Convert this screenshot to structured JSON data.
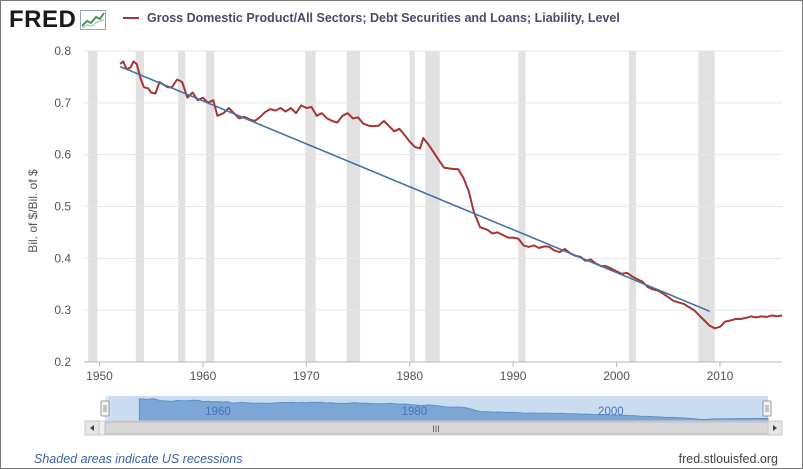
{
  "brand": {
    "name": "FRED"
  },
  "legend": {
    "label": "Gross Domestic Product/All Sectors; Debt Securities and Loans; Liability, Level",
    "color": "#a83533"
  },
  "footer": {
    "note": "Shaded areas indicate US recessions",
    "source": "fred.stlouisfed.org"
  },
  "navigator": {
    "labels": [
      "1960",
      "1980",
      "2000"
    ],
    "grip": "III"
  },
  "chart_data": {
    "type": "line",
    "title": "",
    "xlabel": "",
    "ylabel": "Bil. of $/Bil. of $",
    "xlim": [
      1948.5,
      2016
    ],
    "ylim": [
      0.2,
      0.8
    ],
    "x_ticks": [
      1950,
      1960,
      1970,
      1980,
      1990,
      2000,
      2010
    ],
    "y_ticks": [
      0.2,
      0.3,
      0.4,
      0.5,
      0.6,
      0.7,
      0.8
    ],
    "grid": true,
    "legend_position": "top",
    "recessions": [
      [
        1948.9,
        1949.8
      ],
      [
        1953.5,
        1954.3
      ],
      [
        1957.6,
        1958.3
      ],
      [
        1960.3,
        1961.1
      ],
      [
        1969.9,
        1970.9
      ],
      [
        1973.9,
        1975.2
      ],
      [
        1980.0,
        1980.5
      ],
      [
        1981.5,
        1982.9
      ],
      [
        1990.5,
        1991.2
      ],
      [
        2001.2,
        2001.9
      ],
      [
        2007.9,
        2009.5
      ]
    ],
    "series": [
      {
        "name": "Gross Domestic Product/All Sectors; Debt Securities and Loans; Liability, Level",
        "color": "#a83533",
        "points": [
          [
            1952.0,
            0.775
          ],
          [
            1952.3,
            0.78
          ],
          [
            1952.6,
            0.765
          ],
          [
            1953.0,
            0.768
          ],
          [
            1953.3,
            0.78
          ],
          [
            1953.6,
            0.775
          ],
          [
            1954.0,
            0.745
          ],
          [
            1954.3,
            0.73
          ],
          [
            1954.7,
            0.728
          ],
          [
            1955.0,
            0.72
          ],
          [
            1955.4,
            0.718
          ],
          [
            1955.8,
            0.74
          ],
          [
            1956.2,
            0.735
          ],
          [
            1956.6,
            0.73
          ],
          [
            1957.0,
            0.73
          ],
          [
            1957.5,
            0.745
          ],
          [
            1958.0,
            0.74
          ],
          [
            1958.5,
            0.71
          ],
          [
            1959.0,
            0.72
          ],
          [
            1959.5,
            0.705
          ],
          [
            1960.0,
            0.71
          ],
          [
            1960.5,
            0.7
          ],
          [
            1961.0,
            0.705
          ],
          [
            1961.4,
            0.675
          ],
          [
            1962.0,
            0.68
          ],
          [
            1962.5,
            0.69
          ],
          [
            1963.0,
            0.68
          ],
          [
            1963.5,
            0.67
          ],
          [
            1964.0,
            0.673
          ],
          [
            1964.5,
            0.668
          ],
          [
            1965.0,
            0.665
          ],
          [
            1965.5,
            0.672
          ],
          [
            1966.0,
            0.682
          ],
          [
            1966.5,
            0.688
          ],
          [
            1967.0,
            0.685
          ],
          [
            1967.5,
            0.69
          ],
          [
            1968.0,
            0.683
          ],
          [
            1968.5,
            0.69
          ],
          [
            1969.0,
            0.68
          ],
          [
            1969.5,
            0.695
          ],
          [
            1970.0,
            0.69
          ],
          [
            1970.5,
            0.692
          ],
          [
            1971.0,
            0.675
          ],
          [
            1971.5,
            0.68
          ],
          [
            1972.0,
            0.67
          ],
          [
            1972.5,
            0.665
          ],
          [
            1973.0,
            0.662
          ],
          [
            1973.5,
            0.675
          ],
          [
            1974.0,
            0.68
          ],
          [
            1974.5,
            0.67
          ],
          [
            1975.0,
            0.672
          ],
          [
            1975.5,
            0.66
          ],
          [
            1976.0,
            0.656
          ],
          [
            1976.5,
            0.655
          ],
          [
            1977.0,
            0.656
          ],
          [
            1977.5,
            0.665
          ],
          [
            1978.0,
            0.655
          ],
          [
            1978.5,
            0.645
          ],
          [
            1979.0,
            0.65
          ],
          [
            1979.5,
            0.638
          ],
          [
            1980.0,
            0.625
          ],
          [
            1980.5,
            0.615
          ],
          [
            1981.0,
            0.612
          ],
          [
            1981.3,
            0.632
          ],
          [
            1981.8,
            0.62
          ],
          [
            1982.3,
            0.605
          ],
          [
            1982.8,
            0.59
          ],
          [
            1983.3,
            0.575
          ],
          [
            1984.0,
            0.573
          ],
          [
            1984.7,
            0.572
          ],
          [
            1985.2,
            0.555
          ],
          [
            1985.7,
            0.53
          ],
          [
            1986.2,
            0.49
          ],
          [
            1986.8,
            0.46
          ],
          [
            1987.5,
            0.455
          ],
          [
            1988.0,
            0.448
          ],
          [
            1988.5,
            0.45
          ],
          [
            1989.0,
            0.445
          ],
          [
            1989.5,
            0.44
          ],
          [
            1990.0,
            0.44
          ],
          [
            1990.5,
            0.438
          ],
          [
            1991.0,
            0.425
          ],
          [
            1991.5,
            0.422
          ],
          [
            1992.0,
            0.425
          ],
          [
            1992.5,
            0.42
          ],
          [
            1993.0,
            0.423
          ],
          [
            1993.5,
            0.422
          ],
          [
            1994.0,
            0.415
          ],
          [
            1994.5,
            0.412
          ],
          [
            1995.0,
            0.418
          ],
          [
            1995.5,
            0.41
          ],
          [
            1996.0,
            0.405
          ],
          [
            1996.5,
            0.403
          ],
          [
            1997.0,
            0.395
          ],
          [
            1997.5,
            0.398
          ],
          [
            1998.0,
            0.39
          ],
          [
            1998.5,
            0.385
          ],
          [
            1999.0,
            0.385
          ],
          [
            1999.5,
            0.38
          ],
          [
            2000.0,
            0.375
          ],
          [
            2000.5,
            0.37
          ],
          [
            2001.0,
            0.372
          ],
          [
            2001.5,
            0.365
          ],
          [
            2002.0,
            0.36
          ],
          [
            2002.5,
            0.355
          ],
          [
            2003.0,
            0.345
          ],
          [
            2003.5,
            0.34
          ],
          [
            2004.0,
            0.338
          ],
          [
            2004.5,
            0.332
          ],
          [
            2005.0,
            0.325
          ],
          [
            2005.5,
            0.318
          ],
          [
            2006.0,
            0.315
          ],
          [
            2006.5,
            0.312
          ],
          [
            2007.0,
            0.306
          ],
          [
            2007.5,
            0.3
          ],
          [
            2008.0,
            0.29
          ],
          [
            2008.5,
            0.28
          ],
          [
            2009.0,
            0.27
          ],
          [
            2009.5,
            0.265
          ],
          [
            2010.0,
            0.268
          ],
          [
            2010.5,
            0.278
          ],
          [
            2011.0,
            0.28
          ],
          [
            2011.5,
            0.283
          ],
          [
            2012.0,
            0.283
          ],
          [
            2012.5,
            0.285
          ],
          [
            2013.0,
            0.288
          ],
          [
            2013.5,
            0.286
          ],
          [
            2014.0,
            0.288
          ],
          [
            2014.5,
            0.287
          ],
          [
            2015.0,
            0.29
          ],
          [
            2015.5,
            0.288
          ],
          [
            2016.0,
            0.29
          ]
        ]
      },
      {
        "name": "",
        "color": "#4672a8",
        "points": [
          [
            1952.0,
            0.77
          ],
          [
            2009.0,
            0.298
          ]
        ]
      }
    ]
  }
}
